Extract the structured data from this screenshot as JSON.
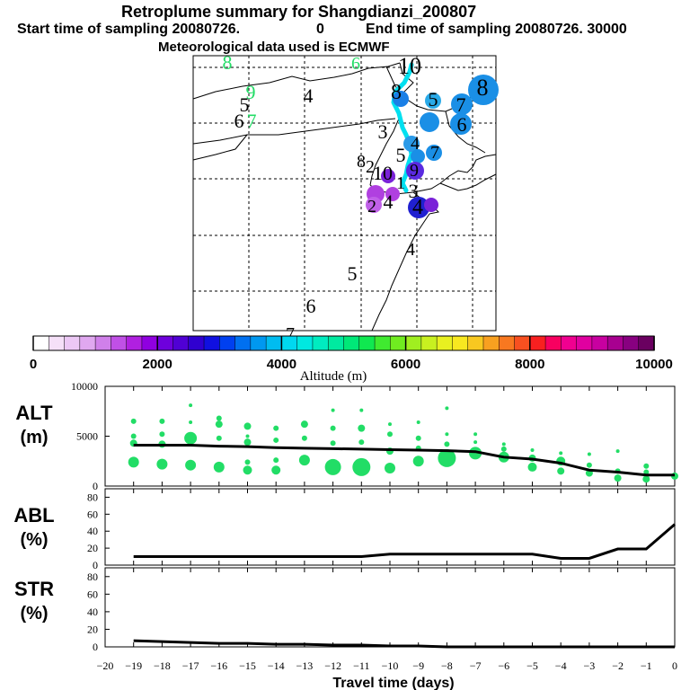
{
  "header": {
    "title": "Retroplume summary for Shangdianzi_200807",
    "start_label": "Start time of sampling 20080726.",
    "start_value": "0",
    "end_label": "End time of sampling 20080726. 30000",
    "met_note": "Meteorological data used is ECMWF"
  },
  "map": {
    "day_labels": [
      {
        "text": "8",
        "color": "#22dd66"
      },
      {
        "text": "6",
        "color": "#22dd66"
      },
      {
        "text": "10",
        "color": "#000000"
      },
      {
        "text": "9",
        "color": "#22dd66"
      },
      {
        "text": "5",
        "color": "#000000"
      },
      {
        "text": "6",
        "color": "#000000"
      },
      {
        "text": "7",
        "color": "#22dd66"
      },
      {
        "text": "4",
        "color": "#000000"
      },
      {
        "text": "8",
        "color": "#000000"
      },
      {
        "text": "5",
        "color": "#000000"
      },
      {
        "text": "8",
        "color": "#000000"
      },
      {
        "text": "7",
        "color": "#000000"
      },
      {
        "text": "6",
        "color": "#000000"
      },
      {
        "text": "3",
        "color": "#000000"
      },
      {
        "text": "4",
        "color": "#000000"
      },
      {
        "text": "7",
        "color": "#000000"
      },
      {
        "text": "5",
        "color": "#000000"
      },
      {
        "text": "8",
        "color": "#000000"
      },
      {
        "text": "2",
        "color": "#000000"
      },
      {
        "text": "10",
        "color": "#000000"
      },
      {
        "text": "9",
        "color": "#000000"
      },
      {
        "text": "1",
        "color": "#000000"
      },
      {
        "text": "3",
        "color": "#000000"
      },
      {
        "text": "2",
        "color": "#000000"
      },
      {
        "text": "4",
        "color": "#000000"
      },
      {
        "text": "4",
        "color": "#000000"
      },
      {
        "text": "4",
        "color": "#000000"
      },
      {
        "text": "5",
        "color": "#000000"
      },
      {
        "text": "6",
        "color": "#000000"
      },
      {
        "text": "7",
        "color": "#000000"
      }
    ],
    "circles": [
      {
        "color": "#1a8fe6",
        "altitude_m": 2800
      },
      {
        "color": "#1a8fe6",
        "altitude_m": 2800
      },
      {
        "color": "#2aaae8",
        "altitude_m": 3200
      },
      {
        "color": "#1a8fe6",
        "altitude_m": 2800
      },
      {
        "color": "#1a8fe6",
        "altitude_m": 2800
      },
      {
        "color": "#1a7fe6",
        "altitude_m": 2600
      },
      {
        "color": "#1a8fe6",
        "altitude_m": 2800
      },
      {
        "color": "#2a9ae8",
        "altitude_m": 3000
      },
      {
        "color": "#1a8fe6",
        "altitude_m": 2800
      },
      {
        "color": "#5a2ae0",
        "altitude_m": 2200
      },
      {
        "color": "#7a22d8",
        "altitude_m": 1800
      },
      {
        "color": "#b040e0",
        "altitude_m": 1500
      },
      {
        "color": "#b040e0",
        "altitude_m": 1500
      },
      {
        "color": "#c060e8",
        "altitude_m": 1200
      },
      {
        "color": "#2020d0",
        "altitude_m": 2200
      },
      {
        "color": "#7a22d8",
        "altitude_m": 1800
      }
    ]
  },
  "colorbar": {
    "ticks": [
      "0",
      "2000",
      "4000",
      "6000",
      "8000",
      "10000"
    ],
    "tick_values": [
      0,
      2000,
      4000,
      6000,
      8000,
      10000
    ],
    "label": "Altitude (m)",
    "colors": [
      "#ffffff",
      "#f5e0f8",
      "#ecc8f5",
      "#e0a8f0",
      "#d080ea",
      "#c050e6",
      "#b020e0",
      "#9000e0",
      "#6e00dc",
      "#5000d4",
      "#3000d0",
      "#1010e0",
      "#0040f0",
      "#0070f0",
      "#0098f0",
      "#00bcf0",
      "#00d8f0",
      "#00e8e0",
      "#00ecc0",
      "#00eaa0",
      "#00e878",
      "#10e850",
      "#40ea30",
      "#70ec20",
      "#a0ee20",
      "#c8f020",
      "#e8f020",
      "#f8e820",
      "#f8c820",
      "#f8a020",
      "#f87820",
      "#f85020",
      "#f82020",
      "#f80060",
      "#f00090",
      "#e000a0",
      "#c800a0",
      "#a80090",
      "#880080",
      "#6a0060"
    ]
  },
  "chart_data": [
    {
      "type": "line",
      "panel": "ALT",
      "ylabel": "ALT\n(m)",
      "ylabel_line1": "ALT",
      "ylabel_line2": "(m)",
      "ylim": [
        0,
        10000
      ],
      "yticks": [
        "0",
        "5000",
        "10000"
      ],
      "ytick_values": [
        0,
        5000,
        10000
      ],
      "x": [
        -19,
        -18,
        -17,
        -16,
        -15,
        -14,
        -13,
        -12,
        -11,
        -10,
        -9,
        -8,
        -7,
        -6,
        -5,
        -4,
        -3,
        -2,
        -1,
        0
      ],
      "values": [
        4100,
        4100,
        4100,
        4000,
        3950,
        3850,
        3800,
        3750,
        3700,
        3650,
        3600,
        3550,
        3450,
        2900,
        2700,
        2300,
        1600,
        1400,
        1100,
        1100
      ],
      "scatter": [
        {
          "x": -19,
          "y": 2400,
          "r": 6
        },
        {
          "x": -19,
          "y": 4300,
          "r": 4
        },
        {
          "x": -19,
          "y": 5000,
          "r": 3
        },
        {
          "x": -19,
          "y": 6500,
          "r": 3
        },
        {
          "x": -18,
          "y": 2200,
          "r": 6
        },
        {
          "x": -18,
          "y": 4200,
          "r": 4
        },
        {
          "x": -18,
          "y": 5200,
          "r": 3
        },
        {
          "x": -18,
          "y": 6500,
          "r": 3
        },
        {
          "x": -17,
          "y": 2100,
          "r": 6
        },
        {
          "x": -17,
          "y": 4800,
          "r": 7
        },
        {
          "x": -17,
          "y": 6400,
          "r": 2
        },
        {
          "x": -17,
          "y": 8100,
          "r": 2
        },
        {
          "x": -16,
          "y": 1900,
          "r": 6
        },
        {
          "x": -16,
          "y": 4800,
          "r": 3
        },
        {
          "x": -16,
          "y": 6200,
          "r": 4
        },
        {
          "x": -16,
          "y": 6800,
          "r": 3
        },
        {
          "x": -15,
          "y": 1600,
          "r": 5
        },
        {
          "x": -15,
          "y": 2400,
          "r": 3
        },
        {
          "x": -15,
          "y": 4400,
          "r": 4
        },
        {
          "x": -15,
          "y": 5000,
          "r": 2
        },
        {
          "x": -15,
          "y": 6000,
          "r": 4
        },
        {
          "x": -14,
          "y": 1600,
          "r": 5
        },
        {
          "x": -14,
          "y": 2600,
          "r": 3
        },
        {
          "x": -14,
          "y": 4600,
          "r": 3
        },
        {
          "x": -14,
          "y": 5800,
          "r": 3
        },
        {
          "x": -13,
          "y": 2600,
          "r": 6
        },
        {
          "x": -13,
          "y": 4800,
          "r": 3
        },
        {
          "x": -13,
          "y": 6200,
          "r": 4
        },
        {
          "x": -12,
          "y": 1900,
          "r": 9
        },
        {
          "x": -12,
          "y": 4300,
          "r": 3
        },
        {
          "x": -12,
          "y": 5800,
          "r": 3
        },
        {
          "x": -12,
          "y": 7600,
          "r": 2
        },
        {
          "x": -11,
          "y": 1900,
          "r": 10
        },
        {
          "x": -11,
          "y": 4400,
          "r": 3
        },
        {
          "x": -11,
          "y": 5800,
          "r": 4
        },
        {
          "x": -11,
          "y": 7600,
          "r": 2
        },
        {
          "x": -10,
          "y": 1800,
          "r": 6
        },
        {
          "x": -10,
          "y": 3500,
          "r": 4
        },
        {
          "x": -10,
          "y": 5200,
          "r": 3
        },
        {
          "x": -10,
          "y": 6200,
          "r": 2
        },
        {
          "x": -9,
          "y": 2500,
          "r": 6
        },
        {
          "x": -9,
          "y": 3800,
          "r": 3
        },
        {
          "x": -9,
          "y": 4800,
          "r": 3
        },
        {
          "x": -9,
          "y": 6400,
          "r": 2
        },
        {
          "x": -8,
          "y": 2800,
          "r": 10
        },
        {
          "x": -8,
          "y": 4200,
          "r": 3
        },
        {
          "x": -8,
          "y": 5200,
          "r": 2
        },
        {
          "x": -8,
          "y": 7800,
          "r": 2
        },
        {
          "x": -7,
          "y": 3300,
          "r": 7
        },
        {
          "x": -7,
          "y": 4400,
          "r": 2
        },
        {
          "x": -7,
          "y": 5200,
          "r": 2
        },
        {
          "x": -6,
          "y": 2900,
          "r": 6
        },
        {
          "x": -6,
          "y": 3700,
          "r": 3
        },
        {
          "x": -6,
          "y": 4200,
          "r": 2
        },
        {
          "x": -5,
          "y": 1900,
          "r": 5
        },
        {
          "x": -5,
          "y": 2800,
          "r": 4
        },
        {
          "x": -5,
          "y": 3600,
          "r": 2
        },
        {
          "x": -4,
          "y": 1500,
          "r": 4
        },
        {
          "x": -4,
          "y": 2500,
          "r": 5
        },
        {
          "x": -4,
          "y": 3300,
          "r": 2
        },
        {
          "x": -3,
          "y": 1300,
          "r": 4
        },
        {
          "x": -3,
          "y": 2100,
          "r": 3
        },
        {
          "x": -3,
          "y": 3200,
          "r": 2
        },
        {
          "x": -2,
          "y": 800,
          "r": 4
        },
        {
          "x": -2,
          "y": 1500,
          "r": 3
        },
        {
          "x": -2,
          "y": 3500,
          "r": 2
        },
        {
          "x": -1,
          "y": 700,
          "r": 4
        },
        {
          "x": -1,
          "y": 1400,
          "r": 3
        },
        {
          "x": -1,
          "y": 2000,
          "r": 3
        },
        {
          "x": 0,
          "y": 1000,
          "r": 4
        }
      ],
      "line_color": "#000000",
      "scatter_color": "#22dd66"
    },
    {
      "type": "line",
      "panel": "ABL",
      "ylabel": "ABL\n(%)",
      "ylabel_line1": "ABL",
      "ylabel_line2": "(%)",
      "ylim": [
        0,
        90
      ],
      "yticks": [
        "0",
        "20",
        "40",
        "60",
        "80"
      ],
      "ytick_values": [
        0,
        20,
        40,
        60,
        80
      ],
      "x": [
        -19,
        -18,
        -17,
        -16,
        -15,
        -14,
        -13,
        -12,
        -11,
        -10,
        -9,
        -8,
        -7,
        -6,
        -5,
        -4,
        -3,
        -2,
        -1,
        0
      ],
      "values": [
        10,
        10,
        10,
        10,
        10,
        10,
        10,
        10,
        10,
        13,
        13,
        13,
        13,
        13,
        13,
        8,
        8,
        19,
        19,
        48
      ]
    },
    {
      "type": "line",
      "panel": "STR",
      "ylabel": "STR\n(%)",
      "ylabel_line1": "STR",
      "ylabel_line2": "(%)",
      "ylim": [
        0,
        90
      ],
      "yticks": [
        "0",
        "20",
        "40",
        "60",
        "80"
      ],
      "ytick_values": [
        0,
        20,
        40,
        60,
        80
      ],
      "x": [
        -19,
        -18,
        -17,
        -16,
        -15,
        -14,
        -13,
        -12,
        -11,
        -10,
        -9,
        -8,
        -7,
        -6,
        -5,
        -4,
        -3,
        -2,
        -1,
        0
      ],
      "values": [
        7,
        6,
        5,
        4,
        4,
        3,
        3,
        2,
        2,
        1,
        1,
        0,
        0,
        0,
        0,
        0,
        0,
        0,
        0,
        0
      ],
      "xlabel": "Travel time (days)",
      "xticks": [
        "−20",
        "−19",
        "−18",
        "−17",
        "−16",
        "−15",
        "−14",
        "−13",
        "−12",
        "−11",
        "−10",
        "−9",
        "−8",
        "−7",
        "−6",
        "−5",
        "−4",
        "−3",
        "−2",
        "−1",
        "0"
      ],
      "xtick_values": [
        -20,
        -19,
        -18,
        -17,
        -16,
        -15,
        -14,
        -13,
        -12,
        -11,
        -10,
        -9,
        -8,
        -7,
        -6,
        -5,
        -4,
        -3,
        -2,
        -1,
        0
      ]
    }
  ]
}
